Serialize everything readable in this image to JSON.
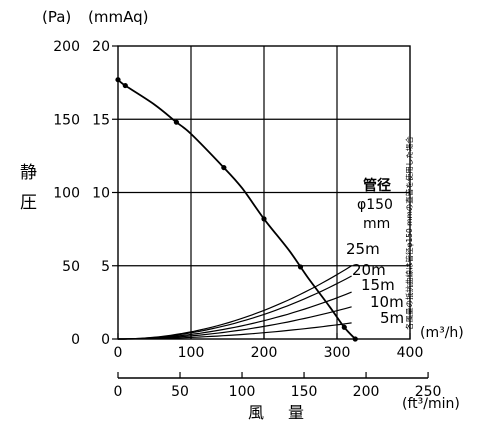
{
  "chart_data": {
    "type": "line",
    "y_units": {
      "pa": "(Pa)",
      "mmaq": "(mmAq)"
    },
    "ylabel": [
      "静",
      "圧"
    ],
    "xlabel": [
      "風",
      "量"
    ],
    "x_units": {
      "m3h": "(m³/h)",
      "ftmin": "(ft³/min)"
    },
    "y_ticks_pa": [
      0,
      50,
      100,
      150,
      200
    ],
    "y_ticks_mmaq": [
      0,
      5,
      10,
      15,
      20
    ],
    "x_ticks_m3h": [
      0,
      100,
      200,
      300,
      400
    ],
    "x_ticks_ftmin": [
      0,
      50,
      100,
      150,
      200,
      250
    ],
    "xlim_m3h": [
      0,
      400
    ],
    "ylim_pa": [
      0,
      200
    ],
    "grid": true,
    "fan_curve": {
      "x": [
        0,
        10,
        50,
        80,
        100,
        145,
        170,
        200,
        235,
        260,
        290,
        310,
        325
      ],
      "y": [
        177,
        173,
        160,
        148,
        140,
        117,
        103,
        82,
        60,
        42,
        22,
        8,
        0
      ],
      "markers_x": [
        0,
        10,
        80,
        145,
        200,
        250,
        310,
        325
      ]
    },
    "duct_label": {
      "title": "管径",
      "diameter": "φ150",
      "unit": "mm"
    },
    "duct_curves": [
      {
        "label": "25m",
        "end_y": 50
      },
      {
        "label": "20m",
        "end_y": 43
      },
      {
        "label": "15m",
        "end_y": 32
      },
      {
        "label": "10m",
        "end_y": 22
      },
      {
        "label": "5m",
        "end_y": 11
      }
    ],
    "duct_curve_end_x": 320,
    "side_note": "各風量の抵抗曲線は管径φ150 mmの直管を使用した場合"
  }
}
